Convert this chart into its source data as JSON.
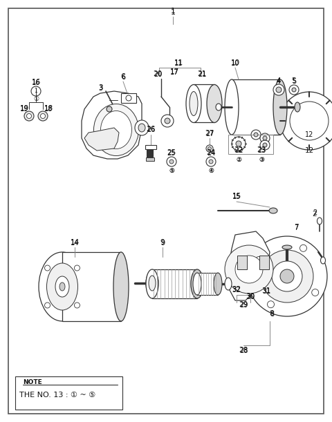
{
  "bg_color": "#ffffff",
  "border_color": "#555555",
  "line_color": "#333333",
  "text_color": "#111111",
  "note_text1": "NOTE",
  "note_text2": "THE NO. 13 : ① ~ ⑤",
  "fig_w": 4.8,
  "fig_h": 6.11,
  "dpi": 100
}
